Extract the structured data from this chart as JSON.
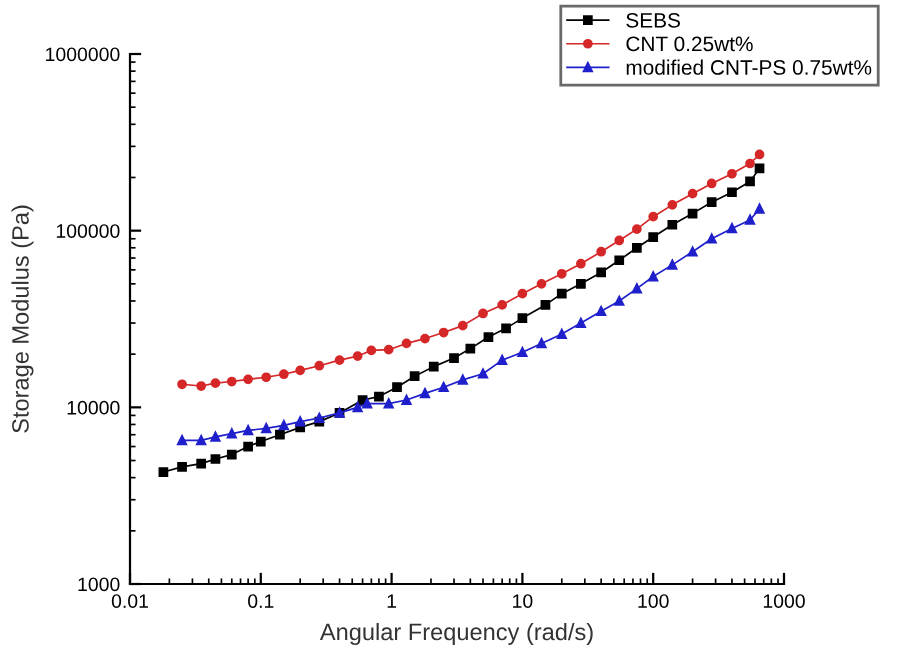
{
  "chart_data": {
    "type": "line",
    "xlabel": "Angular Frequency (rad/s)",
    "ylabel": "Storage Modulus (Pa)",
    "log": "xy",
    "grid": false,
    "legend": "top right",
    "line_style": "solid",
    "xlim": [
      0.01,
      1000
    ],
    "xticks": [
      0.01,
      0.1,
      1,
      10,
      100,
      1000
    ],
    "ylim": [
      1000,
      1000000
    ],
    "yticks": [
      1000,
      10000,
      100000,
      1000000
    ],
    "series": [
      {
        "name": "SEBS",
        "color": "#000000",
        "marker": "square",
        "x": [
          0.018,
          0.025,
          0.035,
          0.045,
          0.06,
          0.08,
          0.1,
          0.14,
          0.2,
          0.28,
          0.4,
          0.6,
          0.8,
          1.1,
          1.5,
          2.1,
          3,
          4,
          5.5,
          7.5,
          10,
          15,
          20,
          28,
          40,
          55,
          75,
          100,
          140,
          200,
          280,
          400,
          550,
          650
        ],
        "values": [
          4300,
          4600,
          4800,
          5100,
          5400,
          6000,
          6400,
          7000,
          7700,
          8300,
          9300,
          11000,
          11500,
          13000,
          15000,
          17000,
          19000,
          21500,
          25000,
          28000,
          32000,
          38000,
          44000,
          50000,
          58000,
          68000,
          80000,
          92000,
          108000,
          125000,
          145000,
          165000,
          190000,
          225000
        ]
      },
      {
        "name": "CNT 0.25wt%",
        "color": "#d62728",
        "marker": "circle",
        "x": [
          0.025,
          0.035,
          0.045,
          0.06,
          0.08,
          0.11,
          0.15,
          0.2,
          0.28,
          0.4,
          0.55,
          0.7,
          0.95,
          1.3,
          1.8,
          2.5,
          3.5,
          5,
          7,
          10,
          14,
          20,
          28,
          40,
          55,
          75,
          100,
          140,
          200,
          280,
          400,
          550,
          650
        ],
        "values": [
          13500,
          13200,
          13700,
          14000,
          14400,
          14800,
          15400,
          16200,
          17200,
          18500,
          19500,
          21000,
          21200,
          23000,
          24500,
          26500,
          29000,
          34000,
          38000,
          44000,
          50000,
          57000,
          65000,
          76000,
          88000,
          102000,
          120000,
          140000,
          162000,
          185000,
          210000,
          240000,
          270000
        ]
      },
      {
        "name": "modified CNT-PS 0.75wt%",
        "color": "#1f1fcc",
        "marker": "triangle",
        "x": [
          0.025,
          0.035,
          0.045,
          0.06,
          0.08,
          0.11,
          0.15,
          0.2,
          0.28,
          0.4,
          0.55,
          0.65,
          0.95,
          1.3,
          1.8,
          2.5,
          3.5,
          5,
          7,
          10,
          14,
          20,
          28,
          40,
          55,
          75,
          100,
          140,
          200,
          280,
          400,
          550,
          650
        ],
        "values": [
          6500,
          6500,
          6800,
          7100,
          7400,
          7600,
          7900,
          8300,
          8700,
          9300,
          10000,
          10500,
          10500,
          11000,
          12000,
          13000,
          14300,
          15500,
          18500,
          20500,
          23000,
          26000,
          30000,
          35000,
          40000,
          47000,
          55000,
          64000,
          76000,
          90000,
          103000,
          115000,
          133000
        ]
      }
    ]
  }
}
